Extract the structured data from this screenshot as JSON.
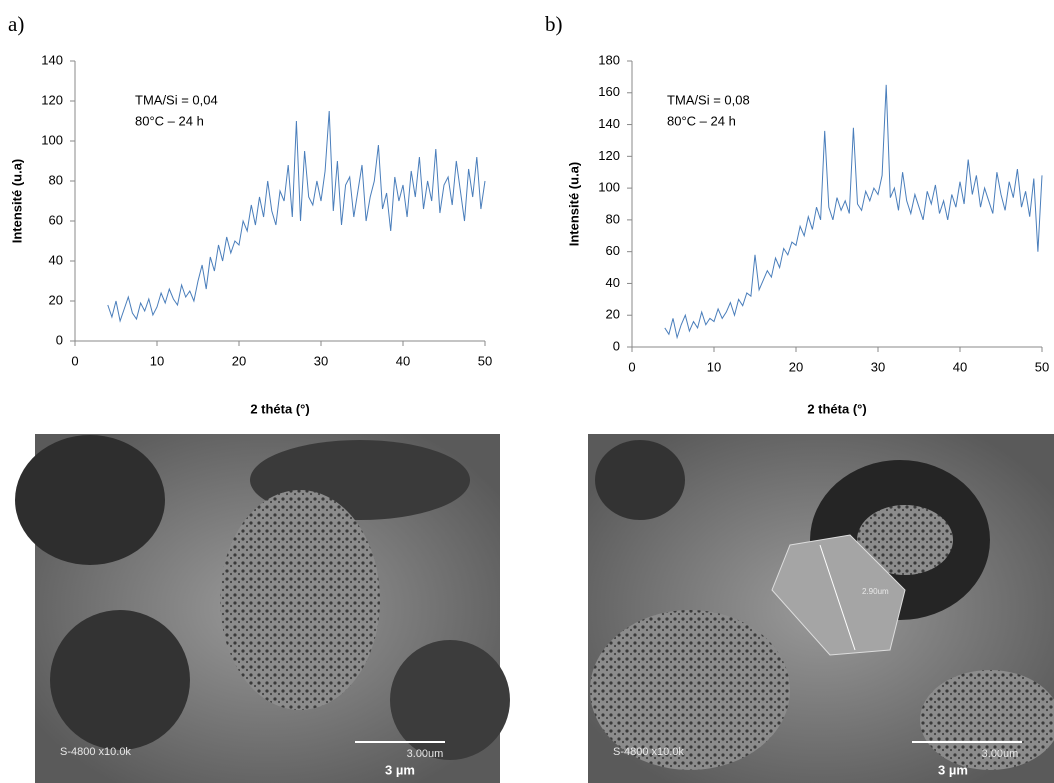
{
  "panels": [
    {
      "label": "a)",
      "sem": {
        "info": "S-4800 x10.0k",
        "scale": "3.00um",
        "scale_caption": "3 µm"
      }
    },
    {
      "label": "b)",
      "sem": {
        "info": "S-4800 x10.0k",
        "scale": "3.00um",
        "scale_caption": "3 µm",
        "measure": "2.90um"
      }
    }
  ],
  "chart_data": [
    {
      "type": "line",
      "x_label": "2 théta (°)",
      "y_label": "Intensité (u.a)",
      "annotations": [
        "TMA/Si = 0,04",
        "80°C – 24 h"
      ],
      "xlim": [
        0,
        50
      ],
      "xticks": [
        0,
        10,
        20,
        30,
        40,
        50
      ],
      "ylim": [
        0,
        140
      ],
      "yticks": [
        0,
        20,
        40,
        60,
        80,
        100,
        120,
        140
      ],
      "x": [
        4,
        4.5,
        5,
        5.5,
        6,
        6.5,
        7,
        7.5,
        8,
        8.5,
        9,
        9.5,
        10,
        10.5,
        11,
        11.5,
        12,
        12.5,
        13,
        13.5,
        14,
        14.5,
        15,
        15.5,
        16,
        16.5,
        17,
        17.5,
        18,
        18.5,
        19,
        19.5,
        20,
        20.5,
        21,
        21.5,
        22,
        22.5,
        23,
        23.5,
        24,
        24.5,
        25,
        25.5,
        26,
        26.5,
        27,
        27.5,
        28,
        28.5,
        29,
        29.5,
        30,
        30.5,
        31,
        31.5,
        32,
        32.5,
        33,
        33.5,
        34,
        34.5,
        35,
        35.5,
        36,
        36.5,
        37,
        37.5,
        38,
        38.5,
        39,
        39.5,
        40,
        40.5,
        41,
        41.5,
        42,
        42.5,
        43,
        43.5,
        44,
        44.5,
        45,
        45.5,
        46,
        46.5,
        47,
        47.5,
        48,
        48.5,
        49,
        49.5,
        50
      ],
      "series": [
        {
          "color": "#4a7ebb",
          "values": [
            18,
            12,
            20,
            10,
            16,
            22,
            14,
            11,
            19,
            15,
            21,
            13,
            17,
            24,
            19,
            26,
            21,
            18,
            28,
            22,
            25,
            20,
            30,
            38,
            26,
            42,
            35,
            48,
            40,
            52,
            44,
            50,
            48,
            60,
            55,
            68,
            58,
            72,
            62,
            80,
            65,
            58,
            75,
            70,
            88,
            62,
            110,
            60,
            95,
            72,
            68,
            80,
            70,
            85,
            115,
            65,
            90,
            58,
            78,
            82,
            62,
            75,
            88,
            60,
            72,
            80,
            98,
            66,
            74,
            55,
            82,
            70,
            78,
            62,
            85,
            72,
            92,
            66,
            80,
            70,
            96,
            64,
            78,
            82,
            68,
            90,
            75,
            60,
            86,
            72,
            92,
            66,
            80
          ]
        }
      ]
    },
    {
      "type": "line",
      "x_label": "2 théta (°)",
      "y_label": "Intensité (u.a)",
      "annotations": [
        "TMA/Si = 0,08",
        "80°C – 24 h"
      ],
      "xlim": [
        0,
        50
      ],
      "xticks": [
        0,
        10,
        20,
        30,
        40,
        50
      ],
      "ylim": [
        0,
        180
      ],
      "yticks": [
        0,
        20,
        40,
        60,
        80,
        100,
        120,
        140,
        160,
        180
      ],
      "x": [
        4,
        4.5,
        5,
        5.5,
        6,
        6.5,
        7,
        7.5,
        8,
        8.5,
        9,
        9.5,
        10,
        10.5,
        11,
        11.5,
        12,
        12.5,
        13,
        13.5,
        14,
        14.5,
        15,
        15.5,
        16,
        16.5,
        17,
        17.5,
        18,
        18.5,
        19,
        19.5,
        20,
        20.5,
        21,
        21.5,
        22,
        22.5,
        23,
        23.5,
        24,
        24.5,
        25,
        25.5,
        26,
        26.5,
        27,
        27.5,
        28,
        28.5,
        29,
        29.5,
        30,
        30.5,
        31,
        31.5,
        32,
        32.5,
        33,
        33.5,
        34,
        34.5,
        35,
        35.5,
        36,
        36.5,
        37,
        37.5,
        38,
        38.5,
        39,
        39.5,
        40,
        40.5,
        41,
        41.5,
        42,
        42.5,
        43,
        43.5,
        44,
        44.5,
        45,
        45.5,
        46,
        46.5,
        47,
        47.5,
        48,
        48.5,
        49,
        49.5,
        50
      ],
      "series": [
        {
          "color": "#4a7ebb",
          "values": [
            12,
            8,
            18,
            6,
            14,
            20,
            10,
            16,
            12,
            22,
            14,
            18,
            16,
            24,
            18,
            22,
            28,
            20,
            30,
            26,
            34,
            32,
            58,
            36,
            42,
            48,
            44,
            56,
            50,
            62,
            58,
            66,
            64,
            76,
            70,
            82,
            74,
            88,
            80,
            136,
            88,
            80,
            94,
            86,
            92,
            84,
            138,
            90,
            86,
            98,
            92,
            100,
            96,
            108,
            165,
            94,
            100,
            86,
            110,
            92,
            84,
            96,
            88,
            80,
            98,
            90,
            102,
            84,
            92,
            80,
            96,
            88,
            104,
            90,
            118,
            96,
            108,
            88,
            100,
            92,
            84,
            110,
            96,
            86,
            104,
            94,
            112,
            88,
            98,
            82,
            106,
            60,
            108
          ]
        }
      ]
    }
  ]
}
